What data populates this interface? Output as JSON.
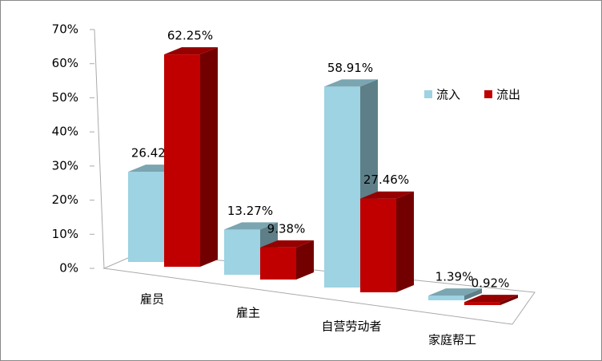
{
  "chart_data": {
    "type": "bar3d",
    "categories": [
      "雇员",
      "雇主",
      "自营劳动者",
      "家庭帮工"
    ],
    "series": [
      {
        "name": "流入",
        "color": "#9dd3e3",
        "values": [
          26.42,
          13.27,
          58.91,
          1.39
        ],
        "value_labels": [
          "26.42%",
          "13.27%",
          "58.91%",
          "1.39%"
        ]
      },
      {
        "name": "流出",
        "color": "#c00000",
        "values": [
          62.25,
          9.38,
          27.46,
          0.92
        ],
        "value_labels": [
          "62.25%",
          "9.38%",
          "27.46%",
          "0.92%"
        ]
      }
    ],
    "ylim": [
      0,
      70
    ],
    "yticks": [
      {
        "value": 0,
        "label": "0%"
      },
      {
        "value": 10,
        "label": "10%"
      },
      {
        "value": 20,
        "label": "20%"
      },
      {
        "value": 30,
        "label": "30%"
      },
      {
        "value": 40,
        "label": "40%"
      },
      {
        "value": 50,
        "label": "50%"
      },
      {
        "value": 60,
        "label": "60%"
      },
      {
        "value": 70,
        "label": "70%"
      }
    ],
    "legend": "right",
    "grid": false
  }
}
